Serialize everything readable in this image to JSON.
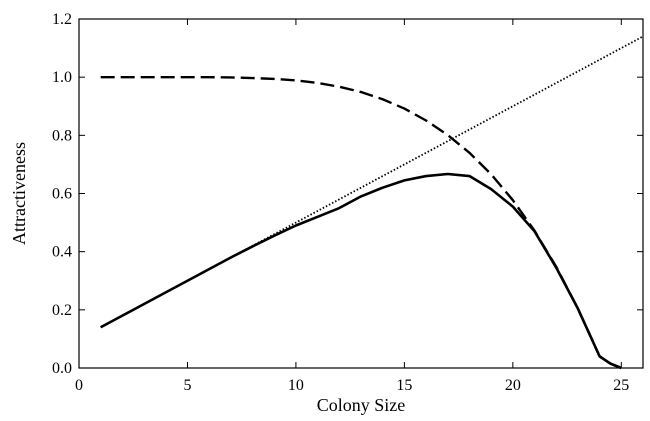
{
  "chart_data": {
    "type": "line",
    "title": "",
    "xlabel": "Colony Size",
    "ylabel": "Attractiveness",
    "xlim": [
      0,
      26
    ],
    "ylim": [
      0,
      1.2
    ],
    "x_ticks": [
      0,
      5,
      10,
      15,
      20,
      25
    ],
    "y_ticks": [
      0.0,
      0.2,
      0.4,
      0.6,
      0.8,
      1.0,
      1.2
    ],
    "x_tick_labels": [
      "0",
      "5",
      "10",
      "15",
      "20",
      "25"
    ],
    "y_tick_labels": [
      "0.0",
      "0.2",
      "0.4",
      "0.6",
      "0.8",
      "1.0",
      "1.2"
    ],
    "grid": false,
    "legend": "none",
    "series": [
      {
        "style": "dashed",
        "color": "#000000",
        "x": [
          1,
          2,
          3,
          4,
          5,
          6,
          7,
          8,
          9,
          10,
          11,
          12,
          13,
          14,
          15,
          16,
          17,
          18,
          19,
          20,
          21,
          22,
          23,
          24,
          24.5,
          25
        ],
        "y": [
          1.0,
          1.0,
          1.0,
          1.0,
          1.0,
          1.0,
          0.999,
          0.997,
          0.994,
          0.989,
          0.98,
          0.967,
          0.949,
          0.924,
          0.892,
          0.851,
          0.801,
          0.74,
          0.666,
          0.577,
          0.472,
          0.348,
          0.204,
          0.04,
          0.015,
          0.0
        ]
      },
      {
        "style": "dotted",
        "color": "#000000",
        "x": [
          1,
          26
        ],
        "y": [
          0.14,
          1.14
        ]
      },
      {
        "style": "solid",
        "color": "#000000",
        "x": [
          1,
          2,
          3,
          4,
          5,
          6,
          7,
          8,
          9,
          10,
          11,
          12,
          13,
          14,
          15,
          16,
          17,
          18,
          19,
          20,
          21,
          22,
          23,
          24,
          24.5,
          25
        ],
        "y": [
          0.14,
          0.18,
          0.22,
          0.26,
          0.3,
          0.34,
          0.38,
          0.418,
          0.455,
          0.49,
          0.52,
          0.55,
          0.59,
          0.62,
          0.645,
          0.66,
          0.667,
          0.66,
          0.615,
          0.555,
          0.47,
          0.345,
          0.204,
          0.04,
          0.015,
          0.0
        ]
      }
    ]
  }
}
